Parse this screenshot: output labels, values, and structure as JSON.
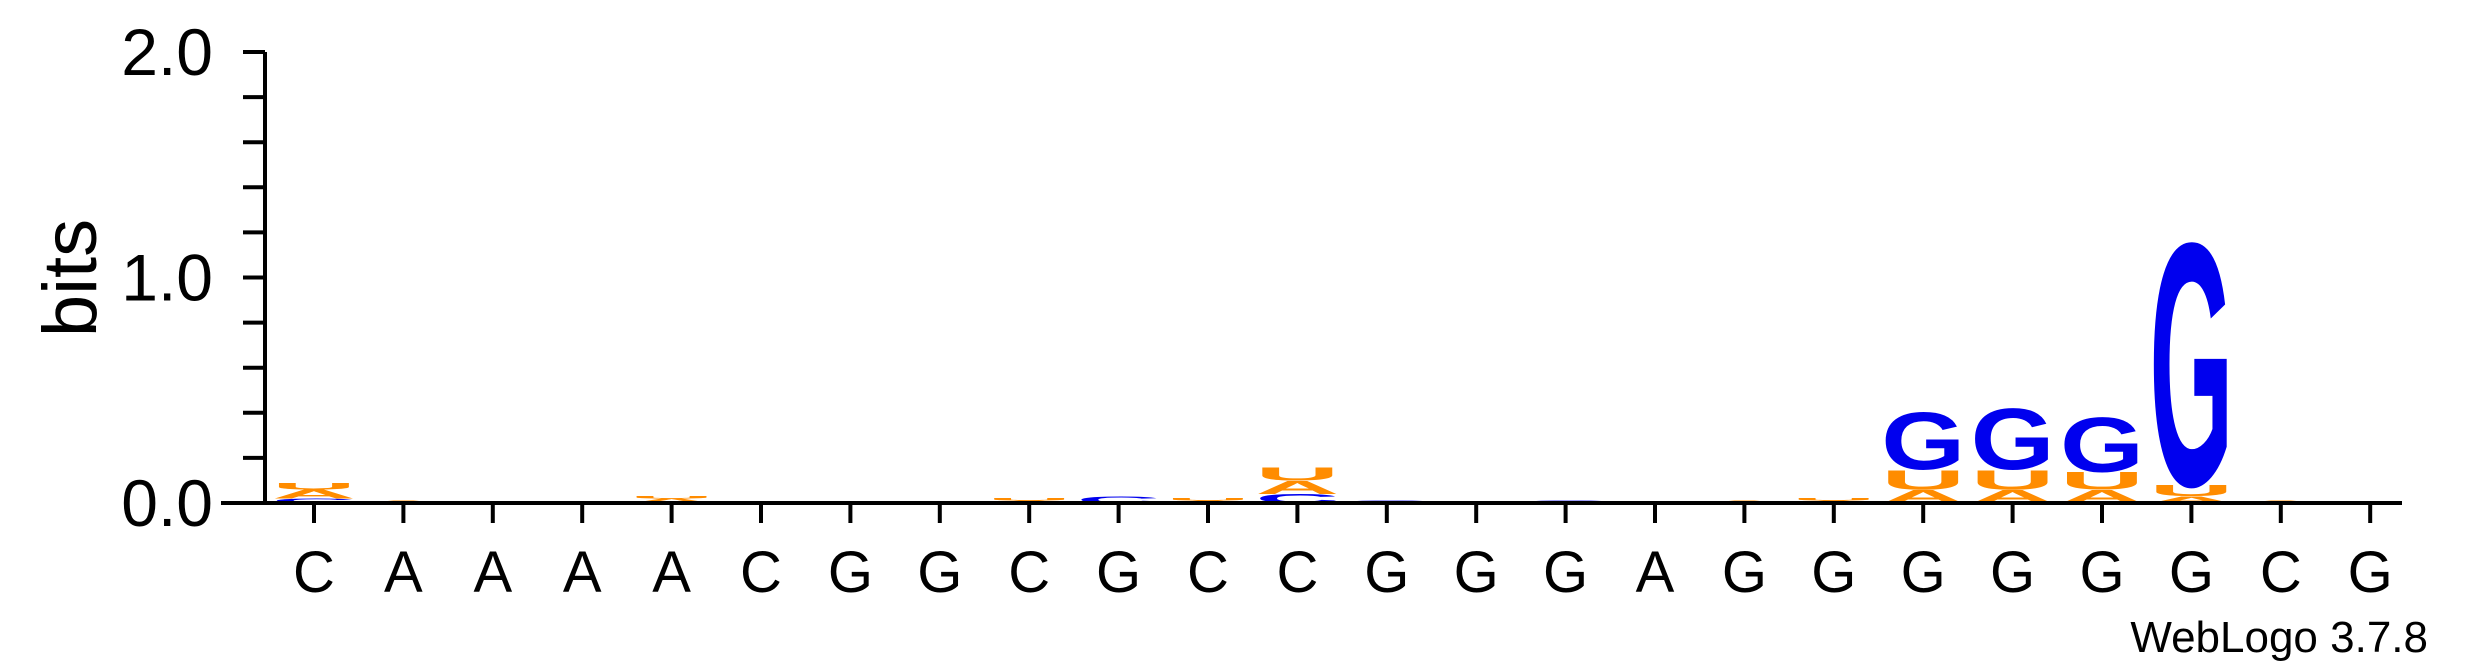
{
  "chart_data": {
    "type": "sequence-logo",
    "ylabel": "bits",
    "ylim": [
      0,
      2.0
    ],
    "yticks": [
      {
        "value": 0.0,
        "label": "0.0"
      },
      {
        "value": 1.0,
        "label": "1.0"
      },
      {
        "value": 2.0,
        "label": "2.0"
      }
    ],
    "colors": {
      "G": "#0000ee",
      "C": "#0000ee",
      "U": "#ff8c00",
      "A": "#ff8c00"
    },
    "positions": [
      {
        "consensus": "C",
        "stack": [
          {
            "letter": "C",
            "bits": 0.02
          },
          {
            "letter": "A",
            "bits": 0.04
          },
          {
            "letter": "U",
            "bits": 0.03
          }
        ]
      },
      {
        "consensus": "A",
        "stack": [
          {
            "letter": "A",
            "bits": 0.01
          }
        ]
      },
      {
        "consensus": "A",
        "stack": []
      },
      {
        "consensus": "A",
        "stack": []
      },
      {
        "consensus": "A",
        "stack": [
          {
            "letter": "A",
            "bits": 0.02
          },
          {
            "letter": "U",
            "bits": 0.01
          }
        ]
      },
      {
        "consensus": "C",
        "stack": []
      },
      {
        "consensus": "G",
        "stack": []
      },
      {
        "consensus": "G",
        "stack": []
      },
      {
        "consensus": "C",
        "stack": [
          {
            "letter": "A",
            "bits": 0.01
          },
          {
            "letter": "U",
            "bits": 0.01
          }
        ]
      },
      {
        "consensus": "G",
        "stack": [
          {
            "letter": "C",
            "bits": 0.03
          }
        ]
      },
      {
        "consensus": "C",
        "stack": [
          {
            "letter": "A",
            "bits": 0.01
          },
          {
            "letter": "U",
            "bits": 0.01
          }
        ]
      },
      {
        "consensus": "C",
        "stack": [
          {
            "letter": "C",
            "bits": 0.04
          },
          {
            "letter": "A",
            "bits": 0.06
          },
          {
            "letter": "U",
            "bits": 0.06
          }
        ]
      },
      {
        "consensus": "G",
        "stack": [
          {
            "letter": "C",
            "bits": 0.01
          }
        ]
      },
      {
        "consensus": "G",
        "stack": []
      },
      {
        "consensus": "G",
        "stack": [
          {
            "letter": "C",
            "bits": 0.01
          }
        ]
      },
      {
        "consensus": "A",
        "stack": []
      },
      {
        "consensus": "G",
        "stack": [
          {
            "letter": "A",
            "bits": 0.01
          }
        ]
      },
      {
        "consensus": "G",
        "stack": [
          {
            "letter": "A",
            "bits": 0.01
          },
          {
            "letter": "U",
            "bits": 0.01
          }
        ]
      },
      {
        "consensus": "G",
        "stack": [
          {
            "letter": "A",
            "bits": 0.06
          },
          {
            "letter": "U",
            "bits": 0.09
          },
          {
            "letter": "G",
            "bits": 0.26
          }
        ]
      },
      {
        "consensus": "G",
        "stack": [
          {
            "letter": "A",
            "bits": 0.06
          },
          {
            "letter": "U",
            "bits": 0.09
          },
          {
            "letter": "G",
            "bits": 0.28
          }
        ]
      },
      {
        "consensus": "G",
        "stack": [
          {
            "letter": "A",
            "bits": 0.06
          },
          {
            "letter": "U",
            "bits": 0.08
          },
          {
            "letter": "G",
            "bits": 0.25
          }
        ]
      },
      {
        "consensus": "G",
        "stack": [
          {
            "letter": "A",
            "bits": 0.03
          },
          {
            "letter": "U",
            "bits": 0.05
          },
          {
            "letter": "G",
            "bits": 1.11
          }
        ]
      },
      {
        "consensus": "C",
        "stack": [
          {
            "letter": "A",
            "bits": 0.01
          }
        ]
      },
      {
        "consensus": "G",
        "stack": []
      }
    ]
  },
  "credit": "WebLogo 3.7.8"
}
